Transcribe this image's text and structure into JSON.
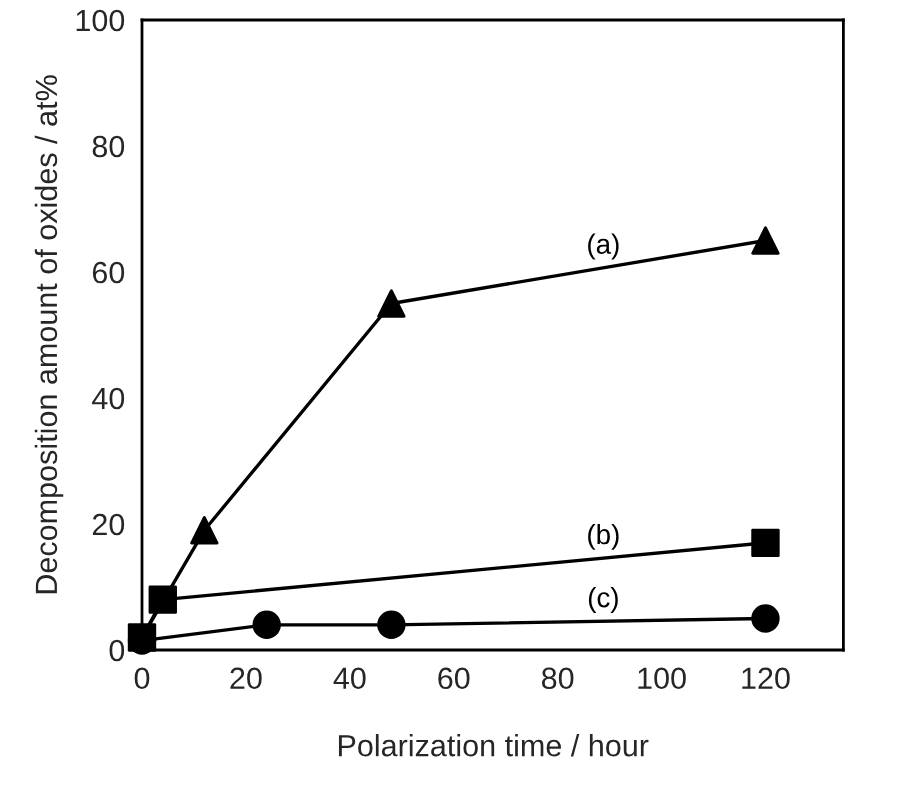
{
  "chart_data": {
    "type": "line",
    "xlabel": "Polarization time / hour",
    "ylabel": "Decomposition amount of oxides / at%",
    "xlim": [
      0,
      135
    ],
    "xticks": [
      0,
      20,
      40,
      60,
      80,
      100,
      120
    ],
    "ylim": [
      0,
      100
    ],
    "yticks": [
      0,
      20,
      40,
      60,
      80,
      100
    ],
    "grid": false,
    "legend": false,
    "series": [
      {
        "name": "(a)",
        "color": "#000000",
        "marker": "triangle",
        "x": [
          0,
          12,
          48,
          120
        ],
        "values": [
          2,
          19,
          55,
          65
        ]
      },
      {
        "name": "(b)",
        "color": "#000000",
        "marker": "square",
        "x": [
          0,
          4,
          120
        ],
        "values": [
          2,
          8,
          17
        ]
      },
      {
        "name": "(c)",
        "color": "#000000",
        "marker": "circle",
        "x": [
          0,
          24,
          48,
          120
        ],
        "values": [
          1.5,
          4,
          4,
          5
        ]
      }
    ]
  }
}
